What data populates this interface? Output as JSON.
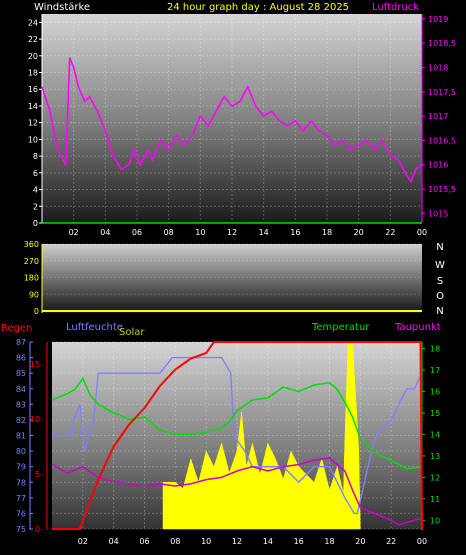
{
  "header": {
    "left_label": "Windstärke",
    "title": "24 hour graph day : August 28 2025",
    "right_label": "Luftdruck"
  },
  "mid": {
    "dir_labels": [
      "N",
      "W",
      "S",
      "O",
      "N"
    ]
  },
  "bottom_labels": {
    "regen": "Regen",
    "luftfeuchte": "Luftfeuchte",
    "solar": "Solar",
    "temperatur": "Temperatur",
    "taupunkt": "Taupunkt"
  },
  "colors": {
    "title": "#ffff00",
    "wind_axis": "#ffffff",
    "pressure": "#ff00ff",
    "rain": "#ff0000",
    "humidity": "#8080ff",
    "temperature": "#00dd00",
    "dewpoint": "#cc00cc",
    "solar": "#ffff00",
    "direction_axis": "#ffff00"
  },
  "chart_data": [
    {
      "type": "line",
      "title": "24 hour graph day : August 28 2025",
      "xlabel": "",
      "x_ticks": [
        "02",
        "04",
        "06",
        "08",
        "10",
        "12",
        "14",
        "16",
        "18",
        "20",
        "22",
        "00"
      ],
      "y_left_label": "Windstärke",
      "y_left_ticks": [
        0,
        2,
        4,
        6,
        8,
        10,
        12,
        14,
        16,
        18,
        20,
        22,
        24
      ],
      "y_left_range": [
        0,
        25
      ],
      "y_right_label": "Luftdruck",
      "y_right_ticks": [
        "1015",
        "1015,5",
        "1016",
        "1016,5",
        "1017",
        "1017,5",
        "1018",
        "1018,5",
        "1019"
      ],
      "y_right_range": [
        1014.8,
        1019.1
      ],
      "series": [
        {
          "name": "Luftdruck",
          "axis": "right",
          "x": [
            0,
            0.5,
            1.0,
            1.5,
            1.75,
            2.0,
            2.3,
            2.7,
            3.0,
            3.5,
            4.0,
            4.5,
            5.0,
            5.5,
            5.8,
            6.2,
            6.7,
            7.0,
            7.5,
            8.0,
            8.5,
            9.0,
            9.5,
            10.0,
            10.5,
            11.0,
            11.5,
            12.0,
            12.5,
            13.0,
            13.5,
            14.0,
            14.5,
            15.0,
            15.5,
            16.0,
            16.5,
            17.0,
            17.5,
            18.0,
            18.5,
            19.0,
            19.5,
            20.0,
            20.5,
            21.0,
            21.5,
            22.0,
            22.5,
            23.0,
            23.3,
            23.6,
            24.0
          ],
          "y": [
            1017.6,
            1017.1,
            1016.3,
            1016.0,
            1018.2,
            1018.0,
            1017.6,
            1017.3,
            1017.4,
            1017.1,
            1016.7,
            1016.2,
            1015.9,
            1016.0,
            1016.3,
            1016.0,
            1016.3,
            1016.1,
            1016.5,
            1016.3,
            1016.6,
            1016.4,
            1016.6,
            1017.0,
            1016.8,
            1017.1,
            1017.4,
            1017.2,
            1017.3,
            1017.6,
            1017.2,
            1017.0,
            1017.1,
            1016.9,
            1016.8,
            1016.9,
            1016.7,
            1016.9,
            1016.7,
            1016.6,
            1016.4,
            1016.5,
            1016.3,
            1016.4,
            1016.5,
            1016.3,
            1016.5,
            1016.2,
            1016.1,
            1015.8,
            1015.65,
            1015.9,
            1016.0
          ]
        },
        {
          "name": "Windstärke",
          "axis": "left",
          "x": [
            0,
            24
          ],
          "y": [
            0,
            0
          ]
        }
      ]
    },
    {
      "type": "line",
      "title": "",
      "y_ticks": [
        0,
        90,
        180,
        270,
        360
      ],
      "y_range": [
        0,
        360
      ],
      "series": [
        {
          "name": "Windrichtung",
          "x": [],
          "y": []
        }
      ]
    },
    {
      "type": "line",
      "title": "",
      "x_ticks": [
        "02",
        "04",
        "06",
        "08",
        "10",
        "12",
        "14",
        "16",
        "18",
        "20",
        "22",
        "00"
      ],
      "humidity_axis": {
        "label": "Luftfeuchte",
        "ticks": [
          75,
          76,
          77,
          78,
          79,
          80,
          81,
          82,
          83,
          84,
          85,
          86,
          87
        ],
        "range": [
          75,
          87
        ]
      },
      "rain_axis": {
        "label": "Regen",
        "ticks": [
          "0",
          "5",
          "10",
          "15"
        ],
        "range": [
          0,
          17
        ]
      },
      "temperature_axis": {
        "label": "Temperatur",
        "ticks": [
          10,
          11,
          12,
          13,
          14,
          15,
          16,
          17,
          18
        ],
        "range": [
          9.6,
          18.3
        ]
      },
      "series": [
        {
          "name": "Regen",
          "axis": "rain",
          "x": [
            0,
            1.8,
            2.2,
            3.0,
            4.0,
            5.0,
            6.0,
            7.0,
            8.0,
            9.0,
            10.0,
            10.5,
            23.9,
            24.0
          ],
          "y": [
            0,
            0,
            1.5,
            4.5,
            7.5,
            9.5,
            11.0,
            13.0,
            14.5,
            15.5,
            16.0,
            17.0,
            17.0,
            0
          ]
        },
        {
          "name": "Luftfeuchte",
          "axis": "humidity",
          "x": [
            0,
            1.3,
            1.4,
            1.8,
            2.1,
            2.4,
            2.7,
            3.0,
            4.0,
            5.0,
            6.0,
            7.0,
            7.8,
            8.0,
            10.0,
            11.0,
            11.6,
            11.8,
            12.5,
            13.0,
            14.0,
            15.0,
            16.0,
            17.0,
            18.0,
            19.0,
            19.6,
            19.8,
            20.5,
            21.0,
            22.0,
            22.5,
            23.0,
            23.5,
            24.0
          ],
          "y": [
            81,
            81,
            82,
            83,
            80,
            81,
            82,
            85,
            85,
            85,
            85,
            85,
            86,
            86,
            86,
            86,
            85,
            81,
            80,
            79,
            79,
            79,
            78,
            79,
            79,
            77,
            76,
            76,
            79,
            81,
            82,
            83,
            84,
            84,
            85
          ]
        },
        {
          "name": "Temperatur",
          "axis": "temperature",
          "x": [
            0,
            1.0,
            1.5,
            2.0,
            2.5,
            3.0,
            4.0,
            5.0,
            6.0,
            7.0,
            8.0,
            9.0,
            10.0,
            11.0,
            11.5,
            12.0,
            13.0,
            14.0,
            15.0,
            16.0,
            17.0,
            18.0,
            18.5,
            19.0,
            19.5,
            20.0,
            21.0,
            22.0,
            23.0,
            24.0
          ],
          "y": [
            15.6,
            15.9,
            16.1,
            16.6,
            15.8,
            15.4,
            15.0,
            14.7,
            14.8,
            14.2,
            14.0,
            14.0,
            14.1,
            14.3,
            14.6,
            15.1,
            15.6,
            15.7,
            16.2,
            16.0,
            16.3,
            16.4,
            16.1,
            15.5,
            14.8,
            13.8,
            13.1,
            12.8,
            12.4,
            12.5
          ]
        },
        {
          "name": "Taupunkt",
          "axis": "temperature",
          "x": [
            0,
            1.0,
            2.0,
            3.0,
            4.0,
            5.0,
            6.0,
            7.0,
            8.0,
            9.0,
            10.0,
            11.0,
            12.0,
            13.0,
            14.0,
            15.0,
            16.0,
            17.0,
            18.0,
            18.5,
            19.0,
            19.5,
            20.0,
            21.0,
            22.0,
            22.5,
            23.0,
            23.5,
            24.0
          ],
          "y": [
            12.6,
            12.2,
            12.5,
            12.0,
            11.8,
            11.7,
            11.6,
            11.7,
            11.6,
            11.7,
            11.9,
            12.0,
            12.3,
            12.5,
            12.3,
            12.5,
            12.6,
            12.8,
            12.9,
            12.6,
            12.3,
            11.4,
            10.6,
            10.3,
            10.0,
            9.8,
            9.9,
            10.0,
            10.1
          ]
        },
        {
          "name": "Solar",
          "axis": "humidity",
          "x": [
            7.2,
            8.0,
            8.5,
            9.0,
            9.5,
            10.0,
            10.5,
            11.0,
            11.5,
            12.0,
            12.3,
            12.6,
            13.0,
            13.5,
            14.0,
            14.5,
            15.0,
            15.5,
            16.0,
            16.5,
            17.0,
            17.5,
            18.0,
            18.5,
            18.9,
            19.0,
            19.2,
            19.5,
            19.9,
            20.0
          ],
          "y": [
            78,
            78,
            77.6,
            79.5,
            78.0,
            80.0,
            79.0,
            80.5,
            78.6,
            80.0,
            82.5,
            79.0,
            80.5,
            78.5,
            80.5,
            79.5,
            78.2,
            80.0,
            79.0,
            78.5,
            78.0,
            79.5,
            77.5,
            79.0,
            77.3,
            80.8,
            87.0,
            87.0,
            80.0,
            75.2
          ]
        }
      ]
    }
  ]
}
